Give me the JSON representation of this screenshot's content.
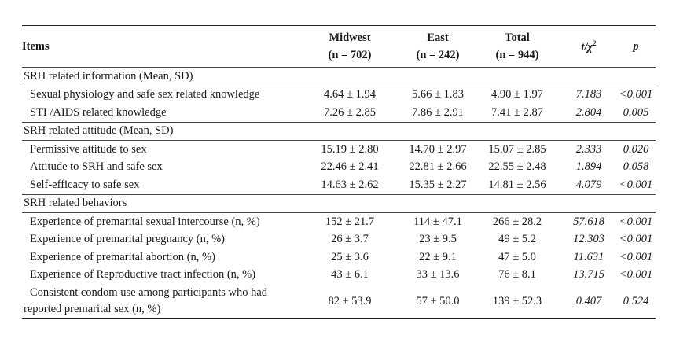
{
  "header": {
    "items": "Items",
    "midwest": "Midwest",
    "midwest_n": "(n = 702)",
    "east": "East",
    "east_n": "(n = 242)",
    "total": "Total",
    "total_n": "(n = 944)",
    "stat": "t/χ",
    "stat_sup": "2",
    "p": "p"
  },
  "sections": [
    {
      "title": "SRH related information (Mean, SD)",
      "rows": [
        {
          "item": "Sexual physiology and safe sex related knowledge",
          "midwest": "4.64 ± 1.94",
          "east": "5.66 ± 1.83",
          "total": "4.90 ± 1.97",
          "stat": "7.183",
          "p": "<0.001"
        },
        {
          "item": "STI /AIDS related knowledge",
          "midwest": "7.26 ± 2.85",
          "east": "7.86 ± 2.91",
          "total": "7.41 ± 2.87",
          "stat": "2.804",
          "p": "0.005"
        }
      ]
    },
    {
      "title": "SRH related attitude (Mean, SD)",
      "rows": [
        {
          "item": "Permissive attitude to sex",
          "midwest": "15.19 ± 2.80",
          "east": "14.70 ± 2.97",
          "total": "15.07 ± 2.85",
          "stat": "2.333",
          "p": "0.020"
        },
        {
          "item": "Attitude to SRH and safe sex",
          "midwest": "22.46 ± 2.41",
          "east": "22.81 ± 2.66",
          "total": "22.55 ± 2.48",
          "stat": "1.894",
          "p": "0.058"
        },
        {
          "item": "Self-efficacy to safe sex",
          "midwest": "14.63 ± 2.62",
          "east": "15.35 ± 2.27",
          "total": "14.81 ± 2.56",
          "stat": "4.079",
          "p": "<0.001"
        }
      ]
    },
    {
      "title": "SRH related behaviors",
      "rows": [
        {
          "item": "Experience of premarital sexual intercourse (n, %)",
          "midwest": "152 ± 21.7",
          "east": "114 ± 47.1",
          "total": "266 ± 28.2",
          "stat": "57.618",
          "p": "<0.001"
        },
        {
          "item": "Experience of premarital pregnancy (n, %)",
          "midwest": "26 ± 3.7",
          "east": "23 ± 9.5",
          "total": "49 ± 5.2",
          "stat": "12.303",
          "p": "<0.001"
        },
        {
          "item": "Experience of premarital abortion (n, %)",
          "midwest": "25 ± 3.6",
          "east": "22 ± 9.1",
          "total": "47 ± 5.0",
          "stat": "11.631",
          "p": "<0.001"
        },
        {
          "item": "Experience of Reproductive tract infection (n, %)",
          "midwest": "43 ± 6.1",
          "east": "33 ± 13.6",
          "total": "76 ± 8.1",
          "stat": "13.715",
          "p": "<0.001"
        }
      ],
      "last_row": {
        "item_line1": "Consistent condom use among participants who had",
        "item_line2": "reported premarital sex (n, %)",
        "midwest": "82 ± 53.9",
        "east": "57 ± 50.0",
        "total": "139 ± 52.3",
        "stat": "0.407",
        "p": "0.524"
      }
    }
  ]
}
